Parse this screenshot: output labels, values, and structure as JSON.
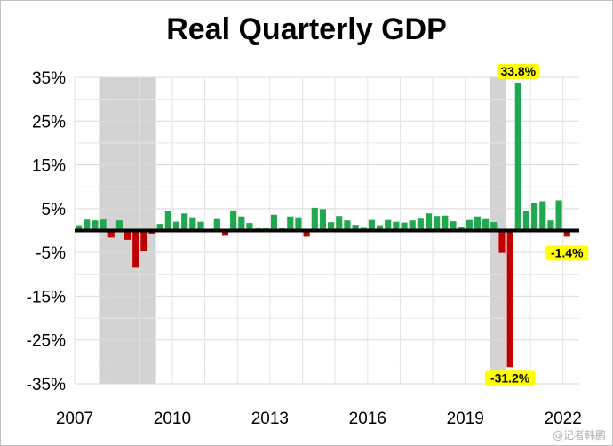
{
  "chart_data": {
    "type": "bar",
    "title": "Real Quarterly GDP",
    "xlabel": "",
    "ylabel": "",
    "ylim": [
      -35,
      35
    ],
    "y_ticks": [
      "35%",
      "25%",
      "15%",
      "5%",
      "-5%",
      "-15%",
      "-25%",
      "-35%"
    ],
    "y_tick_values": [
      35,
      25,
      15,
      5,
      -5,
      -15,
      -25,
      -35
    ],
    "x_ticks": [
      "2007",
      "2010",
      "2013",
      "2016",
      "2019",
      "2022"
    ],
    "x_tick_positions": [
      2007,
      2010,
      2013,
      2016,
      2019,
      2022
    ],
    "x_start": 2007.0,
    "grid": true,
    "positive_color": "#1fa84f",
    "negative_color": "#c00000",
    "recession_color": "#d3d3d3",
    "label_highlight_color": "#ffff00",
    "recessions": [
      [
        2007.75,
        2009.5
      ],
      [
        2019.75,
        2020.25
      ]
    ],
    "quarters": [
      "2007Q1",
      "2007Q2",
      "2007Q3",
      "2007Q4",
      "2008Q1",
      "2008Q2",
      "2008Q3",
      "2008Q4",
      "2009Q1",
      "2009Q2",
      "2009Q3",
      "2009Q4",
      "2010Q1",
      "2010Q2",
      "2010Q3",
      "2010Q4",
      "2011Q1",
      "2011Q2",
      "2011Q3",
      "2011Q4",
      "2012Q1",
      "2012Q2",
      "2012Q3",
      "2012Q4",
      "2013Q1",
      "2013Q2",
      "2013Q3",
      "2013Q4",
      "2014Q1",
      "2014Q2",
      "2014Q3",
      "2014Q4",
      "2015Q1",
      "2015Q2",
      "2015Q3",
      "2015Q4",
      "2016Q1",
      "2016Q2",
      "2016Q3",
      "2016Q4",
      "2017Q1",
      "2017Q2",
      "2017Q3",
      "2017Q4",
      "2018Q1",
      "2018Q2",
      "2018Q3",
      "2018Q4",
      "2019Q1",
      "2019Q2",
      "2019Q3",
      "2019Q4",
      "2020Q1",
      "2020Q2",
      "2020Q3",
      "2020Q4",
      "2021Q1",
      "2021Q2",
      "2021Q3",
      "2021Q4",
      "2022Q1"
    ],
    "values": [
      1.2,
      2.5,
      2.3,
      2.5,
      -1.6,
      2.3,
      -2.1,
      -8.5,
      -4.6,
      -0.7,
      1.5,
      4.5,
      2.0,
      3.9,
      3.0,
      2.0,
      -0.1,
      2.8,
      -1.2,
      4.6,
      3.2,
      1.7,
      0.5,
      0.5,
      3.6,
      0.5,
      3.2,
      3.0,
      -1.4,
      5.2,
      4.9,
      1.9,
      3.3,
      2.3,
      1.3,
      0.6,
      2.4,
      1.2,
      2.4,
      2.0,
      1.8,
      2.3,
      2.9,
      3.9,
      3.3,
      3.4,
      2.1,
      0.9,
      2.4,
      3.2,
      2.8,
      1.9,
      -5.1,
      -31.2,
      33.8,
      4.5,
      6.3,
      6.7,
      2.3,
      6.9,
      -1.4
    ],
    "data_labels": [
      {
        "quarter": "2020Q3",
        "text": "33.8%"
      },
      {
        "quarter": "2020Q2",
        "text": "-31.2%"
      },
      {
        "quarter": "2022Q1",
        "text": "-1.4%"
      }
    ]
  },
  "watermark": "@记者韩鹏"
}
